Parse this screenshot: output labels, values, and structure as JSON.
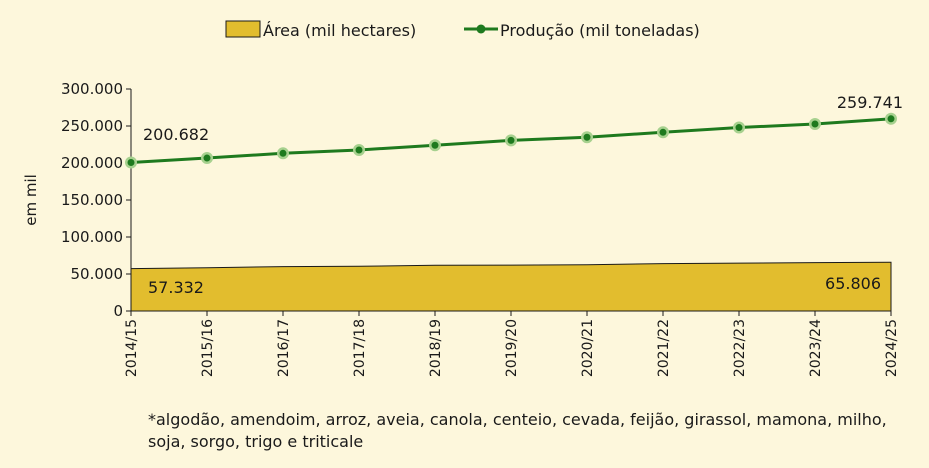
{
  "chart_data": {
    "type": "area+line",
    "categories": [
      "2014/15",
      "2015/16",
      "2016/17",
      "2017/18",
      "2018/19",
      "2019/20",
      "2020/21",
      "2021/22",
      "2022/23",
      "2023/24",
      "2024/25"
    ],
    "series": [
      {
        "name": "Área (mil hectares)",
        "kind": "area",
        "color": "#e2bd2e",
        "values": [
          57332,
          58500,
          60000,
          60500,
          61800,
          62000,
          62500,
          64000,
          64700,
          65400,
          65806
        ]
      },
      {
        "name": "Produção (mil toneladas)",
        "kind": "line",
        "color": "#1e7a1e",
        "values": [
          200682,
          206700,
          213100,
          217600,
          224000,
          230600,
          234800,
          241500,
          247900,
          252700,
          259741
        ]
      }
    ],
    "annotations": {
      "prod_first": "200.682",
      "prod_last": "259.741",
      "area_first": "57.332",
      "area_last": "65.806"
    },
    "ylabel": "em mil",
    "ylim": [
      0,
      300000
    ],
    "yticks": [
      0,
      50000,
      100000,
      150000,
      200000,
      250000,
      300000
    ],
    "ytick_labels": [
      "0",
      "50.000",
      "100.000",
      "150.000",
      "200.000",
      "250.000",
      "300.000"
    ],
    "legend_position": "top-center"
  },
  "footnote": "*algodão, amendoim, arroz, aveia, canola, centeio, cevada, feijão, girassol, mamona, milho, soja, sorgo, trigo e triticale"
}
